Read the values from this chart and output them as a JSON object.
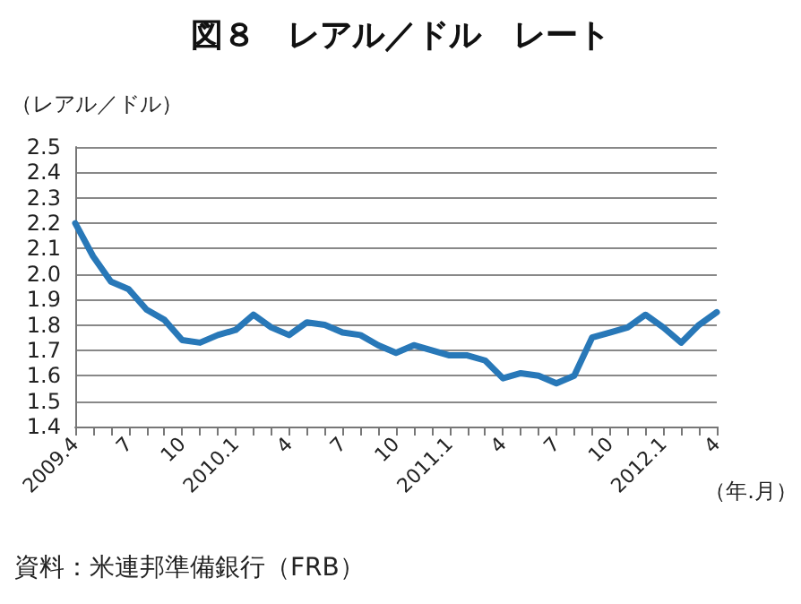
{
  "chart_data": {
    "type": "line",
    "title": "図８　レアル／ドル　レート",
    "ylabel": "（レアル／ドル）",
    "xlabel": "（年.月）",
    "annotations": [
      "資料：米連邦準備銀行（FRB）"
    ],
    "categories": [
      "2009.4",
      null,
      null,
      "7",
      null,
      null,
      "10",
      null,
      null,
      "2010.1",
      null,
      null,
      "4",
      null,
      null,
      "7",
      null,
      null,
      "10",
      null,
      null,
      "2011.1",
      null,
      null,
      "4",
      null,
      null,
      "7",
      null,
      null,
      "10",
      null,
      null,
      "2012.1",
      null,
      null,
      "4"
    ],
    "series": [
      {
        "color": "#2878b8",
        "values": [
          2.2,
          2.07,
          1.97,
          1.94,
          1.86,
          1.82,
          1.74,
          1.73,
          1.76,
          1.78,
          1.84,
          1.79,
          1.76,
          1.81,
          1.8,
          1.77,
          1.76,
          1.72,
          1.69,
          1.72,
          1.7,
          1.68,
          1.68,
          1.66,
          1.59,
          1.61,
          1.6,
          1.57,
          1.6,
          1.75,
          1.77,
          1.79,
          1.84,
          1.79,
          1.73,
          1.8,
          1.85
        ]
      }
    ],
    "ylim": [
      1.4,
      2.5
    ],
    "yticks": [
      1.4,
      1.5,
      1.6,
      1.7,
      1.8,
      1.9,
      {
        "value": 2,
        "label": "2.0"
      },
      2.1,
      2.2,
      2.3,
      2.4,
      2.5
    ],
    "grid": "y",
    "marker": "none",
    "line_style": "solid"
  }
}
